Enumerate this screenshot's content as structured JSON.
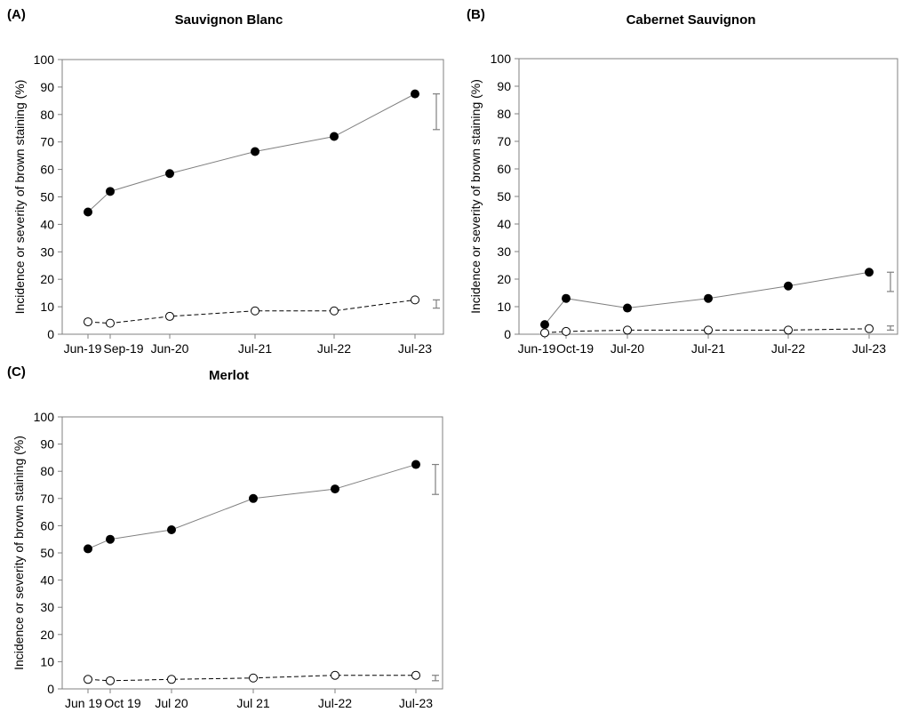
{
  "chart_data": [
    {
      "type": "line",
      "panel": "(A)",
      "title": "Sauvignon Blanc",
      "ylabel": "Incidence or severity of brown staining (%)",
      "xlabel": "",
      "ylim": [
        0,
        100
      ],
      "yticks": [
        0,
        10,
        20,
        30,
        40,
        50,
        60,
        70,
        80,
        90,
        100
      ],
      "grid": false,
      "categories": [
        "Jun-19",
        "Sep-19",
        "Jun-20",
        "Jul-21",
        "Jul-22",
        "Jul-23"
      ],
      "series": [
        {
          "marker": "filled-circle",
          "line": "solid",
          "values": [
            44.5,
            52,
            58.5,
            66.5,
            72,
            87.5
          ]
        },
        {
          "marker": "open-circle",
          "line": "dashed",
          "values": [
            4.5,
            4,
            6.5,
            8.5,
            8.5,
            12.5
          ]
        }
      ],
      "error_bars": [
        {
          "category": "Jul-23",
          "low": 74.5,
          "high": 87.5
        },
        {
          "category": "Jul-23",
          "low": 9.5,
          "high": 12.5
        }
      ]
    },
    {
      "type": "line",
      "panel": "(B)",
      "title": "Cabernet Sauvignon",
      "ylabel": "Incidence or severity of brown staining (%)",
      "xlabel": "",
      "ylim": [
        0,
        100
      ],
      "yticks": [
        0,
        10,
        20,
        30,
        40,
        50,
        60,
        70,
        80,
        90,
        100
      ],
      "grid": false,
      "categories": [
        "Jun-19",
        "Oct-19",
        "Jul-20",
        "Jul-21",
        "Jul-22",
        "Jul-23"
      ],
      "series": [
        {
          "marker": "filled-circle",
          "line": "solid",
          "values": [
            3.5,
            13,
            9.5,
            13,
            17.5,
            22.5
          ]
        },
        {
          "marker": "open-circle",
          "line": "dashed",
          "values": [
            0.5,
            1,
            1.5,
            1.5,
            1.5,
            2
          ]
        }
      ],
      "error_bars": [
        {
          "category": "Jul-23",
          "low": 15.5,
          "high": 22.5
        },
        {
          "category": "Jul-23",
          "low": 1.5,
          "high": 3
        }
      ]
    },
    {
      "type": "line",
      "panel": "(C)",
      "title": "Merlot",
      "ylabel": "Incidence or severity of brown staining (%)",
      "xlabel": "",
      "ylim": [
        0,
        100
      ],
      "yticks": [
        0,
        10,
        20,
        30,
        40,
        50,
        60,
        70,
        80,
        90,
        100
      ],
      "grid": false,
      "categories": [
        "Jun 19",
        "Oct 19",
        "Jul 20",
        "Jul 21",
        "Jul-22",
        "Jul-23"
      ],
      "series": [
        {
          "marker": "filled-circle",
          "line": "solid",
          "values": [
            51.5,
            55,
            58.5,
            70,
            73.5,
            82.5
          ]
        },
        {
          "marker": "open-circle",
          "line": "dashed",
          "values": [
            3.5,
            3,
            3.5,
            4,
            5,
            5
          ]
        }
      ],
      "error_bars": [
        {
          "category": "Jul-23",
          "low": 71.5,
          "high": 82.5
        },
        {
          "category": "Jul-23",
          "low": 3,
          "high": 5
        }
      ]
    }
  ],
  "colors": {
    "filled_marker": "#000000",
    "line": "#808080",
    "axis_frame": "#808080",
    "error_bar": "#808080"
  }
}
